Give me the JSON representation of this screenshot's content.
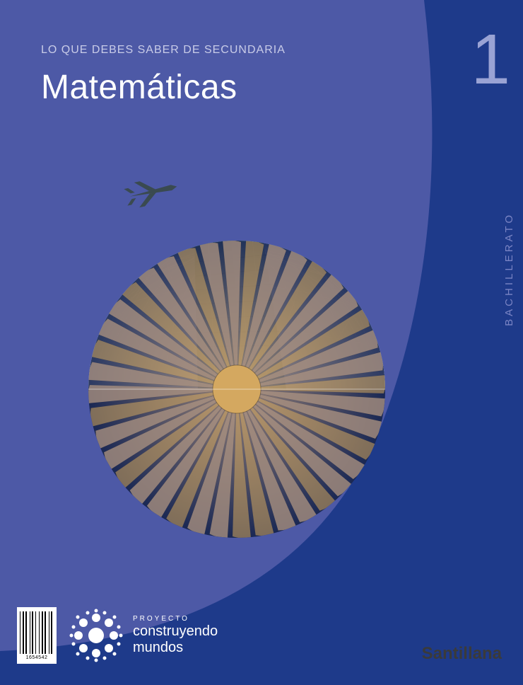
{
  "colors": {
    "bg_main": "#4d59a6",
    "bg_curve": "#1e3a8a",
    "text_light": "#c9cce8",
    "text_white": "#ffffff",
    "grade_number": "#9aa3d4",
    "grade_label": "#7a84c4",
    "publisher": "#3a3a3a",
    "art_top_sky": "#7ea8c9",
    "art_building1": "#4a7a6a",
    "art_building2": "#6a9a8a",
    "art_wire": "#d8dff0",
    "art_bottom_bg": "#1a2854",
    "art_bottom_accent": "#d4a860",
    "art_bottom_fan": "#a89080",
    "plane": "#3a4a50"
  },
  "header": {
    "subtitle": "LO QUE DEBES SABER DE SECUNDARIA",
    "title": "Matemáticas"
  },
  "grade": {
    "number": "1",
    "label": "BACHILLERATO"
  },
  "project": {
    "label": "PROYECTO",
    "name_line1": "construyendo",
    "name_line2": "mundos"
  },
  "publisher": "Santillana",
  "barcode": {
    "number": "1654542"
  },
  "typography": {
    "subtitle_size": 16,
    "title_size": 48,
    "grade_number_size": 100,
    "grade_label_size": 15,
    "project_label_size": 10,
    "project_name_size": 20,
    "publisher_size": 24
  }
}
